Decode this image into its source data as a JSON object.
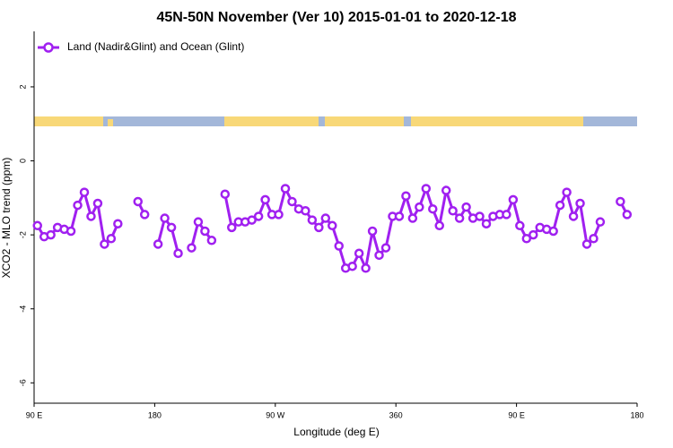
{
  "chart_data": {
    "type": "line",
    "title": "45N-50N November (Ver 10)   2015-01-01 to 2020-12-18",
    "x_label": "Longitude (deg E)",
    "y_label": "XCO2 - MLO trend (ppm)",
    "x": [
      92.5,
      97.5,
      102.5,
      107.5,
      112.5,
      117.5,
      122.5,
      127.5,
      132.5,
      137.5,
      142.5,
      147.5,
      152.5,
      157.5,
      162.5,
      167.5,
      172.5,
      177.5,
      182.5,
      187.5,
      192.5,
      197.5,
      202.5,
      207.5,
      212.5,
      217.5,
      222.5,
      227.5,
      232.5,
      237.5,
      242.5,
      247.5,
      252.5,
      257.5,
      262.5,
      267.5,
      272.5,
      277.5,
      282.5,
      287.5,
      292.5,
      297.5,
      302.5,
      307.5,
      312.5,
      317.5,
      322.5,
      327.5,
      332.5,
      337.5,
      342.5,
      347.5,
      352.5,
      357.5,
      362.5,
      367.5,
      372.5,
      377.5,
      382.5,
      387.5,
      392.5,
      397.5,
      402.5,
      407.5,
      412.5,
      417.5,
      422.5,
      427.5,
      432.5,
      437.5,
      442.5,
      447.5,
      452.5,
      457.5,
      462.5,
      467.5,
      472.5,
      477.5,
      482.5,
      487.5,
      492.5,
      497.5,
      502.5,
      507.5,
      512.5,
      517.5,
      522.5,
      527.5,
      532.5
    ],
    "series": [
      {
        "name": "Land (Nadir&Glint) and Ocean (Glint)",
        "color": "#a020f0",
        "values": [
          -1.75,
          -2.05,
          -2.0,
          -1.8,
          -1.85,
          -1.9,
          -1.2,
          -0.85,
          -1.5,
          -1.15,
          -2.25,
          -2.1,
          -1.7,
          null,
          null,
          -1.1,
          -1.45,
          null,
          -2.25,
          -1.55,
          -1.8,
          -2.5,
          null,
          -2.35,
          -1.65,
          -1.9,
          -2.15,
          null,
          -0.9,
          -1.8,
          -1.65,
          -1.65,
          -1.6,
          -1.5,
          -1.05,
          -1.45,
          -1.45,
          -0.75,
          -1.1,
          -1.3,
          -1.35,
          -1.6,
          -1.8,
          -1.55,
          -1.75,
          -2.3,
          -2.9,
          -2.85,
          -2.5,
          -2.9,
          -1.9,
          -2.55,
          -2.35,
          -1.5,
          -1.5,
          -0.95,
          -1.55,
          -1.25,
          -0.75,
          -1.3,
          -1.75,
          -0.8,
          -1.35,
          -1.55,
          -1.25,
          -1.55,
          -1.5,
          -1.7,
          -1.5,
          -1.45,
          -1.45,
          -1.05,
          -1.75,
          -2.1,
          -2.0,
          -1.8,
          -1.85,
          -1.9,
          -1.2,
          -0.85,
          -1.5,
          -1.15,
          -2.25,
          -2.1,
          -1.65,
          null,
          null,
          -1.1,
          -1.45
        ]
      }
    ],
    "xlim": [
      90,
      540
    ],
    "xticks": [
      {
        "value": 90,
        "label": "90 E"
      },
      {
        "value": 180,
        "label": "180"
      },
      {
        "value": 270,
        "label": "90 W"
      },
      360,
      {
        "value": 450,
        "label": "90 E"
      },
      {
        "value": 540,
        "label": "180"
      }
    ],
    "ylim": [
      -6.55,
      3.5
    ],
    "yticks": [
      2,
      0,
      -2,
      -4,
      -6
    ],
    "legend": "top-left"
  }
}
